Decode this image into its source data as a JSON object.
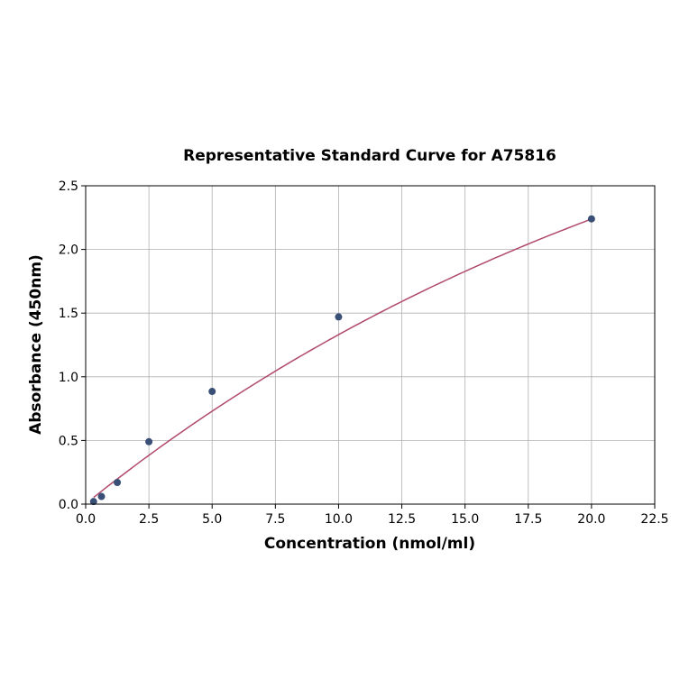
{
  "chart_data": {
    "type": "scatter",
    "title": "Representative Standard Curve for A75816",
    "xlabel": "Concentration (nmol/ml)",
    "ylabel": "Absorbance (450nm)",
    "xlim": [
      0,
      22.5
    ],
    "ylim": [
      0,
      2.5
    ],
    "x_ticks": [
      "0.0",
      "2.5",
      "5.0",
      "7.5",
      "10.0",
      "12.5",
      "15.0",
      "17.5",
      "20.0",
      "22.5"
    ],
    "y_ticks": [
      "0.0",
      "0.5",
      "1.0",
      "1.5",
      "2.0",
      "2.5"
    ],
    "grid": true,
    "points": [
      {
        "x": 0.3125,
        "y": 0.02
      },
      {
        "x": 0.625,
        "y": 0.06
      },
      {
        "x": 1.25,
        "y": 0.17
      },
      {
        "x": 2.5,
        "y": 0.49
      },
      {
        "x": 5.0,
        "y": 0.885
      },
      {
        "x": 10.0,
        "y": 1.47
      },
      {
        "x": 20.0,
        "y": 2.24
      }
    ],
    "fit_curve": {
      "x": [
        0.3125,
        1,
        2,
        3,
        4,
        5,
        6,
        7,
        8,
        9,
        10,
        11,
        12,
        13,
        14,
        15,
        16,
        17,
        18,
        19,
        20
      ],
      "y": [
        0.045,
        0.155,
        0.31,
        0.46,
        0.6,
        0.74,
        0.87,
        0.99,
        1.11,
        1.22,
        1.32,
        1.42,
        1.51,
        1.6,
        1.68,
        1.76,
        1.83,
        1.9,
        1.96,
        2.02,
        2.24
      ]
    },
    "colors": {
      "points": "#3a4f75",
      "curve": "#b04a6a",
      "grid": "#b0b0b0"
    }
  }
}
